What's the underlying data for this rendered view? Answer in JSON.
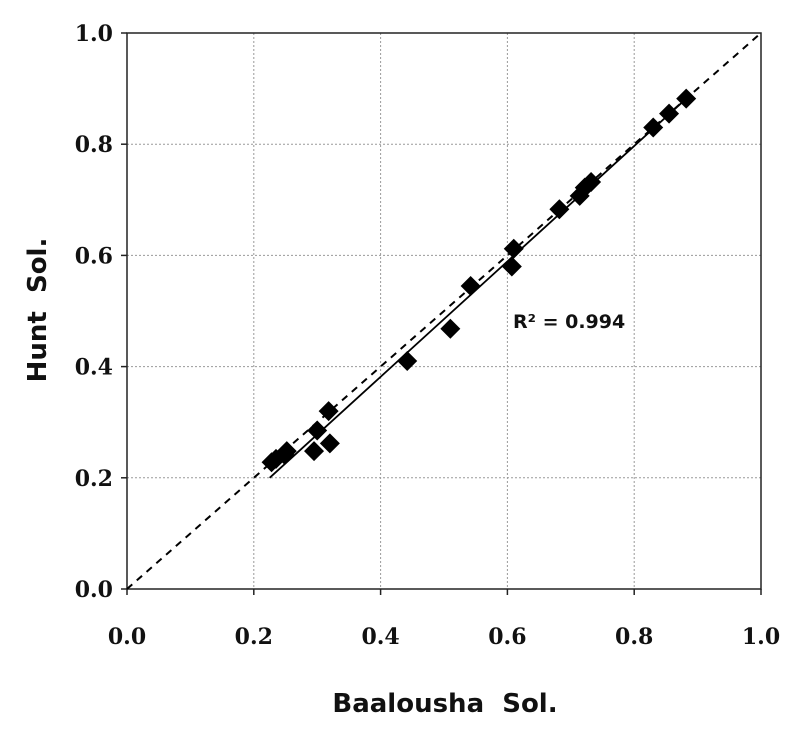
{
  "chart_data": {
    "type": "scatter",
    "xlabel": "Baalousha  Sol.",
    "ylabel": "Hunt  Sol.",
    "xlim": [
      0.0,
      1.0
    ],
    "ylim": [
      0.0,
      1.0
    ],
    "xticks": [
      "0.0",
      "0.2",
      "0.4",
      "0.6",
      "0.8",
      "1.0"
    ],
    "yticks": [
      "0.0",
      "0.2",
      "0.4",
      "0.6",
      "0.8",
      "1.0"
    ],
    "grid": true,
    "annotation": "R² = 0.994",
    "series": [
      {
        "marker": "diamond",
        "color": "#000000",
        "x": [
          0.228,
          0.235,
          0.248,
          0.252,
          0.295,
          0.3,
          0.318,
          0.32,
          0.442,
          0.51,
          0.542,
          0.607,
          0.61,
          0.682,
          0.714,
          0.722,
          0.732,
          0.83,
          0.855,
          0.882
        ],
        "y": [
          0.228,
          0.234,
          0.242,
          0.248,
          0.248,
          0.285,
          0.32,
          0.262,
          0.41,
          0.468,
          0.545,
          0.58,
          0.612,
          0.683,
          0.707,
          0.722,
          0.732,
          0.83,
          0.855,
          0.882
        ]
      }
    ],
    "reference_line": {
      "style": "dashed",
      "color": "#000000",
      "x": [
        0.0,
        1.0
      ],
      "y": [
        0.0,
        1.0
      ]
    },
    "fit_line": {
      "style": "solid",
      "color": "#000000",
      "x": [
        0.225,
        0.885
      ],
      "y": [
        0.2,
        0.885
      ]
    }
  }
}
